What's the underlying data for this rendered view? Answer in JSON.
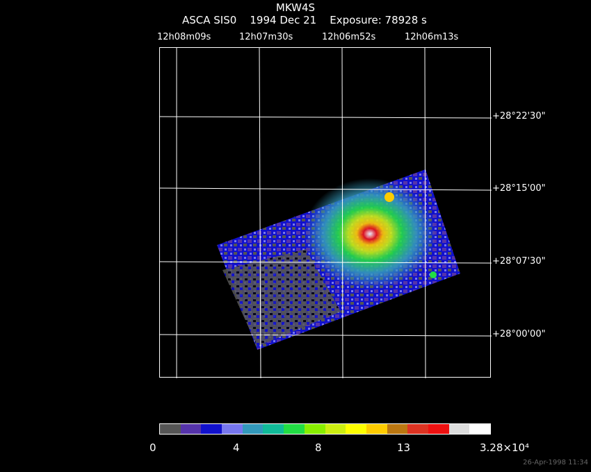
{
  "header": {
    "object": "MKW4S",
    "instrument": "ASCA SIS0",
    "date": "1994 Dec 21",
    "exposure": "Exposure: 78928 s"
  },
  "ra_labels": [
    "12h08m09s",
    "12h07m30s",
    "12h06m52s",
    "12h06m13s"
  ],
  "dec_labels": [
    "+28°22'30\"",
    "+28°15'00\"",
    "+28°07'30\"",
    "+28°00'00\""
  ],
  "colorbar": {
    "colors": [
      "#555555",
      "#5533aa",
      "#1111cc",
      "#7777ee",
      "#3399bb",
      "#11bb99",
      "#22dd44",
      "#88ee00",
      "#ccee11",
      "#ffff00",
      "#ffcc00",
      "#bb7711",
      "#dd3322",
      "#ee1111",
      "#dddddd",
      "#ffffff"
    ],
    "tick_labels": [
      "0",
      "4",
      "8",
      "13"
    ],
    "max_label": "3.28×10⁴"
  },
  "timestamp": "26-Apr-1998 11:34"
}
